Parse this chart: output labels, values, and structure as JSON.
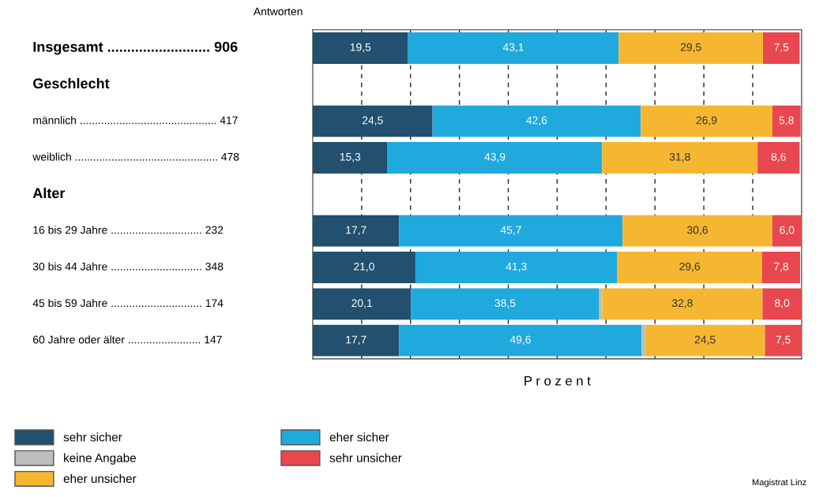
{
  "chart_data": {
    "type": "bar",
    "orientation": "horizontal",
    "stacked": true,
    "ylabel": "Antworten",
    "xlabel": "P r o z e n t",
    "categories": [
      "Insgesamt .......................... 906",
      "Geschlecht",
      "männlich ............................................. 417",
      "weiblich ............................................... 478",
      "Alter",
      "16 bis 29 Jahre .............................. 232",
      "30 bis 44 Jahre .............................. 348",
      "45 bis 59 Jahre .............................. 174",
      "60 Jahre oder älter ........................ 147"
    ],
    "series": [
      {
        "name": "sehr sicher",
        "color": "#22506e",
        "values": [
          19.5,
          null,
          24.5,
          15.3,
          null,
          17.7,
          21.0,
          20.1,
          17.7
        ],
        "value_labels": [
          "19,5",
          null,
          "24,5",
          "15,3",
          null,
          "17,7",
          "21,0",
          "20,1",
          "17,7"
        ]
      },
      {
        "name": "eher sicher",
        "color": "#1fa9dd",
        "values": [
          43.1,
          null,
          42.6,
          43.9,
          null,
          45.7,
          41.3,
          38.5,
          49.6
        ],
        "value_labels": [
          "43,1",
          null,
          "42,6",
          "43,9",
          null,
          "45,7",
          "41,3",
          "38,5",
          "49,6"
        ]
      },
      {
        "name": "keine Angabe",
        "color": "#bdbdbd",
        "values": [
          null,
          null,
          null,
          null,
          null,
          null,
          null,
          0.6,
          0.7
        ],
        "value_labels": [
          null,
          null,
          null,
          null,
          null,
          null,
          null,
          null,
          null
        ]
      },
      {
        "name": "eher unsicher",
        "color": "#f5b731",
        "values": [
          29.5,
          null,
          26.9,
          31.8,
          null,
          30.6,
          29.6,
          32.8,
          24.5
        ],
        "value_labels": [
          "29,5",
          null,
          "26,9",
          "31,8",
          null,
          "30,6",
          "29,6",
          "32,8",
          "24,5"
        ]
      },
      {
        "name": "sehr unsicher",
        "color": "#e8474f",
        "values": [
          7.5,
          null,
          5.8,
          8.6,
          null,
          6.0,
          7.8,
          8.0,
          7.5
        ],
        "value_labels": [
          "7,5",
          null,
          "5,8",
          "8,6",
          null,
          "6,0",
          "7,8",
          "8,0",
          "7,5"
        ]
      }
    ],
    "xlim": [
      0,
      100
    ],
    "xticks": [
      {
        "value": 10,
        "label": null
      },
      {
        "value": 20,
        "label": null
      },
      {
        "value": 30,
        "label": null
      },
      {
        "value": 40,
        "label": null
      },
      {
        "value": 50,
        "label": null
      },
      {
        "value": 60,
        "label": null
      },
      {
        "value": 70,
        "label": null
      },
      {
        "value": 80,
        "label": null
      },
      {
        "value": 90,
        "label": null
      }
    ],
    "grid": "x",
    "line_style": "dashed",
    "legend": "bottom",
    "annotations": [
      "Magistrat Linz"
    ]
  }
}
